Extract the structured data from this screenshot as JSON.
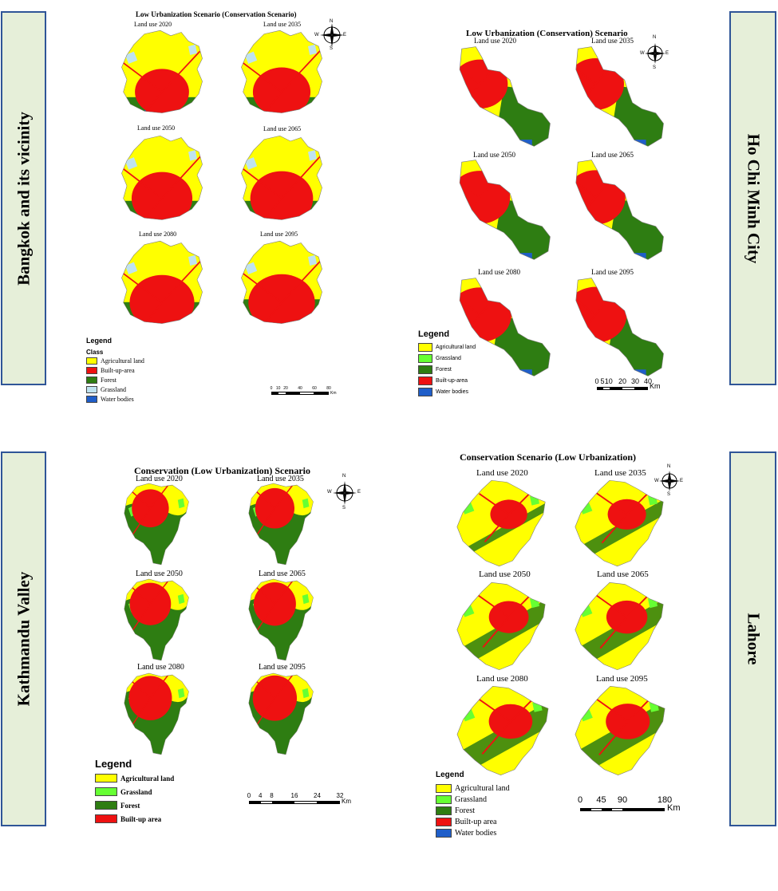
{
  "colors": {
    "agricultural": "#ffff00",
    "builtup": "#ee1111",
    "forest": "#2e7d12",
    "grassland_hcm": "#66ff33",
    "grassland_bkk": "#bfe3f0",
    "water": "#1f5ec9",
    "box_fill": "#e6efd9",
    "box_border": "#2f5597"
  },
  "panels": [
    {
      "city": "Bangkok and its vicinity",
      "title": "Low Urbanization Scenario (Conservation Scenario)",
      "maps": [
        "Land use 2020",
        "Land use 2035",
        "Land use 2050",
        "Land use 2065",
        "Land use 2080",
        "Land use 2095"
      ],
      "map_shares": [
        {
          "builtup": 0.3,
          "forest": 0.1,
          "water": 0.05
        },
        {
          "builtup": 0.36,
          "forest": 0.1,
          "water": 0.05
        },
        {
          "builtup": 0.42,
          "forest": 0.12,
          "water": 0.05
        },
        {
          "builtup": 0.46,
          "forest": 0.12,
          "water": 0.05
        },
        {
          "builtup": 0.5,
          "forest": 0.14,
          "water": 0.05
        },
        {
          "builtup": 0.54,
          "forest": 0.16,
          "water": 0.05
        }
      ],
      "legend_title": "Legend",
      "legend_subtitle": "Class",
      "legend": [
        {
          "label": "Agricultural land",
          "color": "#ffff00"
        },
        {
          "label": "Built-up-area",
          "color": "#ee1111"
        },
        {
          "label": "Forest",
          "color": "#2e7d12"
        },
        {
          "label": "Grassland",
          "color": "#bfe3f0"
        },
        {
          "label": "Water bodies",
          "color": "#1f5ec9"
        }
      ],
      "scale_ticks": [
        "0",
        "10",
        "20",
        "40",
        "60",
        "80"
      ],
      "scale_unit": "Km",
      "compass": [
        "N",
        "E",
        "S",
        "W"
      ]
    },
    {
      "city": "Ho Chi Minh City",
      "title": "Low Urbanization (Conservation) Scenario",
      "maps": [
        "Land use 2020",
        "Land use 2035",
        "Land use 2050",
        "Land use 2065",
        "Land use 2080",
        "Land use 2095"
      ],
      "map_shares": [
        {
          "builtup": 0.22,
          "forest": 0.4,
          "water": 0.06
        },
        {
          "builtup": 0.26,
          "forest": 0.4,
          "water": 0.06
        },
        {
          "builtup": 0.28,
          "forest": 0.42,
          "water": 0.06
        },
        {
          "builtup": 0.3,
          "forest": 0.42,
          "water": 0.06
        },
        {
          "builtup": 0.32,
          "forest": 0.44,
          "water": 0.06
        },
        {
          "builtup": 0.34,
          "forest": 0.44,
          "water": 0.06
        }
      ],
      "legend_title": "Legend",
      "legend": [
        {
          "label": "Agricultural land",
          "color": "#ffff00"
        },
        {
          "label": "Grassland",
          "color": "#66ff33"
        },
        {
          "label": "Forest",
          "color": "#2e7d12"
        },
        {
          "label": "Built-up-area",
          "color": "#ee1111"
        },
        {
          "label": "Water bodies",
          "color": "#1f5ec9"
        }
      ],
      "scale_ticks": [
        "0",
        "5",
        "10",
        "20",
        "30",
        "40"
      ],
      "scale_unit": "Km",
      "compass": [
        "N",
        "E",
        "S",
        "W"
      ]
    },
    {
      "city": "Kathmandu Valley",
      "title": "Conservation (Low Urbanization) Scenario",
      "maps": [
        "Land use 2020",
        "Land use 2035",
        "Land use 2050",
        "Land use 2065",
        "Land use 2080",
        "Land use 2095"
      ],
      "map_shares": [
        {
          "builtup": 0.2,
          "forest": 0.55,
          "water": 0.0
        },
        {
          "builtup": 0.24,
          "forest": 0.55,
          "water": 0.0
        },
        {
          "builtup": 0.28,
          "forest": 0.56,
          "water": 0.0
        },
        {
          "builtup": 0.3,
          "forest": 0.56,
          "water": 0.0
        },
        {
          "builtup": 0.32,
          "forest": 0.58,
          "water": 0.0
        },
        {
          "builtup": 0.34,
          "forest": 0.58,
          "water": 0.0
        }
      ],
      "legend_title": "Legend",
      "legend": [
        {
          "label": "Agricultural land",
          "color": "#ffff00"
        },
        {
          "label": "Grassland",
          "color": "#66ff33"
        },
        {
          "label": "Forest",
          "color": "#2e7d12"
        },
        {
          "label": "Built-up area",
          "color": "#ee1111"
        }
      ],
      "scale_ticks": [
        "0",
        "4",
        "8",
        "16",
        "24",
        "32"
      ],
      "scale_unit": "Km",
      "compass": [
        "N",
        "E",
        "S",
        "W"
      ]
    },
    {
      "city": "Lahore",
      "title": "Conservation Scenario (Low Urbanization)",
      "maps": [
        "Land use 2020",
        "Land use 2035",
        "Land use 2050",
        "Land use 2065",
        "Land use 2080",
        "Land use 2095"
      ],
      "map_shares": [
        {
          "builtup": 0.06,
          "forest": 0.02,
          "water": 0.0
        },
        {
          "builtup": 0.07,
          "forest": 0.12,
          "water": 0.0
        },
        {
          "builtup": 0.08,
          "forest": 0.18,
          "water": 0.0
        },
        {
          "builtup": 0.09,
          "forest": 0.2,
          "water": 0.0
        },
        {
          "builtup": 0.1,
          "forest": 0.24,
          "water": 0.0
        },
        {
          "builtup": 0.11,
          "forest": 0.26,
          "water": 0.0
        }
      ],
      "legend_title": "Legend",
      "legend": [
        {
          "label": "Agricultural land",
          "color": "#ffff00"
        },
        {
          "label": "Grassland",
          "color": "#66ff33"
        },
        {
          "label": "Forest",
          "color": "#2e7d12"
        },
        {
          "label": "Built-up area",
          "color": "#ee1111"
        },
        {
          "label": "Water bodies",
          "color": "#1f5ec9"
        }
      ],
      "scale_ticks": [
        "0",
        "45",
        "90",
        "180"
      ],
      "scale_unit": "Km",
      "compass": [
        "N",
        "E",
        "S",
        "W"
      ]
    }
  ]
}
